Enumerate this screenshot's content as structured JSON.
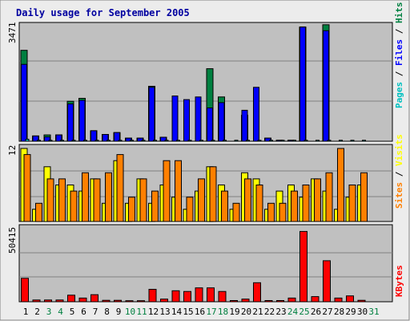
{
  "chart_data": {
    "type": "bar",
    "title": "Daily usage for September 2005",
    "categories": [
      "1",
      "2",
      "3",
      "4",
      "5",
      "6",
      "7",
      "8",
      "9",
      "10",
      "11",
      "12",
      "13",
      "14",
      "15",
      "16",
      "17",
      "18",
      "19",
      "20",
      "21",
      "22",
      "23",
      "24",
      "25",
      "26",
      "27",
      "28",
      "29",
      "30",
      "31"
    ],
    "weekend_days": [
      "3",
      "4",
      "10",
      "11",
      "17",
      "18",
      "24",
      "25",
      "31"
    ],
    "panels": [
      {
        "id": "hits",
        "max_label": "3471",
        "max": 3471,
        "legend": [
          "Pages",
          "Files",
          "Hits"
        ],
        "series": [
          {
            "name": "Hits",
            "values": [
              2730,
              158,
              190,
              190,
              1200,
              1290,
              316,
              205,
              260,
              95,
              95,
              1650,
              120,
              0,
              0,
              0,
              2180,
              1330,
              0,
              780,
              0,
              95,
              30,
              30,
              3430,
              0,
              3500,
              0,
              0,
              0,
              0
            ]
          },
          {
            "name": "Files",
            "values": [
              2310,
              158,
              130,
              190,
              1120,
              1230,
              316,
              205,
              260,
              95,
              95,
              1620,
              120,
              1360,
              1250,
              1330,
              1000,
              1160,
              0,
              930,
              1620,
              95,
              30,
              30,
              3430,
              0,
              3320,
              0,
              0,
              0,
              0
            ]
          },
          {
            "name": "Pages",
            "values": [
              60,
              30,
              30,
              30,
              30,
              30,
              30,
              30,
              30,
              30,
              30,
              30,
              30,
              30,
              30,
              30,
              30,
              30,
              30,
              30,
              30,
              30,
              30,
              30,
              30,
              30,
              30,
              30,
              30,
              30,
              0
            ]
          }
        ]
      },
      {
        "id": "visits",
        "max_label": "12",
        "max": 12,
        "legend": [
          "Sites",
          "Visits"
        ],
        "series": [
          {
            "name": "Visits",
            "values": [
              12,
              2,
              9,
              6,
              6,
              5,
              7,
              3,
              10,
              3,
              7,
              3,
              6,
              4,
              2,
              5,
              9,
              6,
              2,
              8,
              7,
              2,
              5,
              6,
              4,
              7,
              5,
              2,
              4,
              6,
              0
            ]
          },
          {
            "name": "Sites",
            "values": [
              11,
              3,
              7,
              7,
              5,
              8,
              7,
              8,
              11,
              4,
              7,
              5,
              10,
              10,
              4,
              7,
              9,
              5,
              3,
              7,
              6,
              3,
              3,
              5,
              6,
              7,
              8,
              12,
              6,
              8,
              0
            ]
          }
        ]
      },
      {
        "id": "kbytes",
        "max_label": "50415",
        "max": 50415,
        "legend": [
          "KBytes"
        ],
        "series": [
          {
            "name": "KBytes",
            "values": [
              16000,
              1200,
              1200,
              1200,
              4500,
              2500,
              4800,
              1000,
              1000,
              700,
              700,
              8500,
              1800,
              7500,
              7000,
              9500,
              9500,
              7000,
              800,
              1800,
              13000,
              800,
              800,
              2500,
              48000,
              3500,
              28000,
              2500,
              4000,
              1000,
              0
            ]
          }
        ]
      }
    ],
    "colors": {
      "background": "#ececec",
      "panel_bg": "#c0c0c0",
      "grid": "#808080",
      "pages": "#00c0c0",
      "files": "#0000ff",
      "hits": "#008040",
      "sites": "#ff8000",
      "visits": "#ffff00",
      "kbytes": "#ff0000",
      "title": "#0000a0",
      "weekday_label": "#000000",
      "weekend_label": "#008040"
    }
  }
}
